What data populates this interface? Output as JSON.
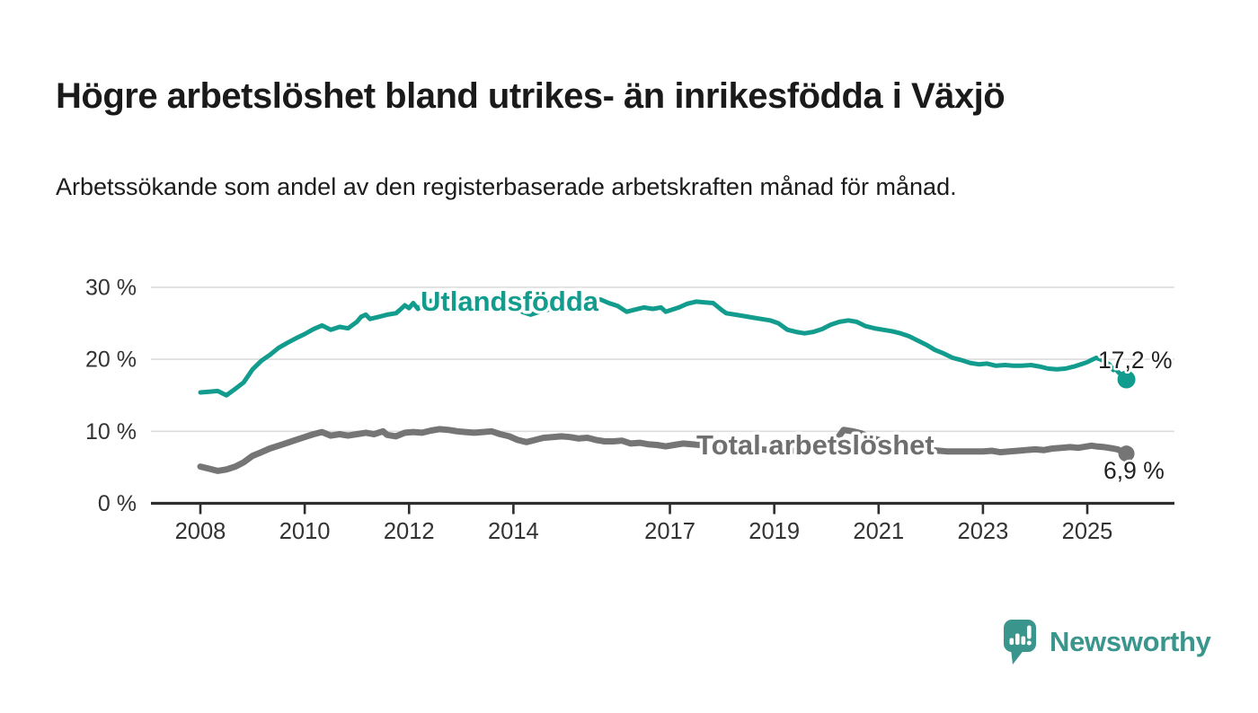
{
  "chart_data": {
    "type": "line",
    "title": "Högre arbetslöshet bland utrikes- än inrikesfödda i Växjö",
    "subtitle": "Arbetssökande som andel av den registerbaserade arbetskraften månad för månad.",
    "grid": "horizontal",
    "legend_position": "inline-labels-on-lines",
    "y_axis": {
      "unit": "%",
      "range": [
        0,
        31.5
      ],
      "tick_values": [
        30,
        20,
        10,
        0
      ],
      "tick_labels": [
        "30 %",
        "20 %",
        "10 %",
        "0 %"
      ]
    },
    "x_axis": {
      "range_years": [
        2007.9,
        2025.95
      ],
      "tick_years": [
        2008,
        2010,
        2012,
        2014,
        2017,
        2019,
        2021,
        2023,
        2025
      ],
      "tick_labels": [
        "2008",
        "2010",
        "2012",
        "2014",
        "2017",
        "2019",
        "2021",
        "2023",
        "2025"
      ]
    },
    "series": [
      {
        "name": "Utlandsfödda",
        "color": "#129c8d",
        "end_value": 17.2,
        "end_label": "17,2 %",
        "points": [
          [
            2008.0,
            15.4
          ],
          [
            2008.17,
            15.5
          ],
          [
            2008.33,
            15.6
          ],
          [
            2008.5,
            15.0
          ],
          [
            2008.67,
            15.9
          ],
          [
            2008.83,
            16.8
          ],
          [
            2009.0,
            18.6
          ],
          [
            2009.17,
            19.8
          ],
          [
            2009.33,
            20.6
          ],
          [
            2009.5,
            21.6
          ],
          [
            2009.67,
            22.3
          ],
          [
            2009.83,
            22.9
          ],
          [
            2010.0,
            23.5
          ],
          [
            2010.17,
            24.2
          ],
          [
            2010.33,
            24.7
          ],
          [
            2010.5,
            24.1
          ],
          [
            2010.67,
            24.5
          ],
          [
            2010.83,
            24.3
          ],
          [
            2011.0,
            25.2
          ],
          [
            2011.08,
            25.9
          ],
          [
            2011.17,
            26.2
          ],
          [
            2011.25,
            25.6
          ],
          [
            2011.42,
            25.9
          ],
          [
            2011.58,
            26.2
          ],
          [
            2011.75,
            26.4
          ],
          [
            2011.83,
            26.9
          ],
          [
            2011.92,
            27.5
          ],
          [
            2012.0,
            27.1
          ],
          [
            2012.08,
            27.8
          ],
          [
            2012.17,
            27.0
          ],
          [
            2012.25,
            27.6
          ],
          [
            2012.33,
            28.0
          ],
          [
            2012.5,
            28.2
          ],
          [
            2012.67,
            28.0
          ],
          [
            2012.83,
            27.9
          ],
          [
            2013.0,
            27.9
          ],
          [
            2013.17,
            28.0
          ],
          [
            2013.33,
            28.1
          ],
          [
            2013.5,
            28.2
          ],
          [
            2013.67,
            27.9
          ],
          [
            2013.83,
            27.6
          ],
          [
            2014.0,
            27.3
          ],
          [
            2014.17,
            26.6
          ],
          [
            2014.33,
            26.2
          ],
          [
            2014.5,
            26.6
          ],
          [
            2014.67,
            26.9
          ],
          [
            2014.83,
            27.1
          ],
          [
            2015.0,
            27.4
          ],
          [
            2015.17,
            27.6
          ],
          [
            2015.33,
            27.8
          ],
          [
            2015.5,
            28.0
          ],
          [
            2015.67,
            28.3
          ],
          [
            2015.83,
            27.8
          ],
          [
            2016.0,
            27.4
          ],
          [
            2016.17,
            26.6
          ],
          [
            2016.33,
            26.9
          ],
          [
            2016.5,
            27.2
          ],
          [
            2016.67,
            27.0
          ],
          [
            2016.83,
            27.2
          ],
          [
            2016.92,
            26.6
          ],
          [
            2017.0,
            26.8
          ],
          [
            2017.17,
            27.2
          ],
          [
            2017.33,
            27.7
          ],
          [
            2017.5,
            28.0
          ],
          [
            2017.67,
            27.9
          ],
          [
            2017.83,
            27.8
          ],
          [
            2018.0,
            26.8
          ],
          [
            2018.08,
            26.4
          ],
          [
            2018.25,
            26.2
          ],
          [
            2018.42,
            26.0
          ],
          [
            2018.58,
            25.8
          ],
          [
            2018.75,
            25.6
          ],
          [
            2018.92,
            25.4
          ],
          [
            2019.08,
            25.0
          ],
          [
            2019.25,
            24.1
          ],
          [
            2019.42,
            23.8
          ],
          [
            2019.58,
            23.6
          ],
          [
            2019.75,
            23.8
          ],
          [
            2019.92,
            24.2
          ],
          [
            2020.08,
            24.8
          ],
          [
            2020.25,
            25.2
          ],
          [
            2020.42,
            25.4
          ],
          [
            2020.58,
            25.2
          ],
          [
            2020.75,
            24.6
          ],
          [
            2020.92,
            24.3
          ],
          [
            2021.08,
            24.1
          ],
          [
            2021.25,
            23.9
          ],
          [
            2021.42,
            23.6
          ],
          [
            2021.58,
            23.2
          ],
          [
            2021.75,
            22.6
          ],
          [
            2021.92,
            22.0
          ],
          [
            2022.08,
            21.3
          ],
          [
            2022.25,
            20.8
          ],
          [
            2022.42,
            20.2
          ],
          [
            2022.58,
            19.9
          ],
          [
            2022.75,
            19.5
          ],
          [
            2022.92,
            19.3
          ],
          [
            2023.08,
            19.4
          ],
          [
            2023.25,
            19.1
          ],
          [
            2023.42,
            19.2
          ],
          [
            2023.58,
            19.1
          ],
          [
            2023.75,
            19.1
          ],
          [
            2023.92,
            19.2
          ],
          [
            2024.08,
            19.0
          ],
          [
            2024.25,
            18.7
          ],
          [
            2024.42,
            18.6
          ],
          [
            2024.58,
            18.7
          ],
          [
            2024.75,
            19.0
          ],
          [
            2024.92,
            19.4
          ],
          [
            2025.0,
            19.6
          ],
          [
            2025.08,
            19.9
          ],
          [
            2025.17,
            20.2
          ],
          [
            2025.25,
            20.0
          ],
          [
            2025.33,
            19.7
          ],
          [
            2025.42,
            19.3
          ],
          [
            2025.5,
            18.5
          ],
          [
            2025.54,
            18.9
          ],
          [
            2025.58,
            18.3
          ],
          [
            2025.75,
            17.2
          ]
        ]
      },
      {
        "name": "Total arbetslöshet",
        "color": "#757575",
        "end_value": 6.9,
        "end_label": "6,9 %",
        "points": [
          [
            2008.0,
            5.1
          ],
          [
            2008.17,
            4.8
          ],
          [
            2008.33,
            4.5
          ],
          [
            2008.5,
            4.7
          ],
          [
            2008.67,
            5.1
          ],
          [
            2008.83,
            5.7
          ],
          [
            2009.0,
            6.6
          ],
          [
            2009.17,
            7.1
          ],
          [
            2009.33,
            7.6
          ],
          [
            2009.5,
            8.0
          ],
          [
            2009.67,
            8.4
          ],
          [
            2009.83,
            8.8
          ],
          [
            2010.0,
            9.2
          ],
          [
            2010.17,
            9.6
          ],
          [
            2010.33,
            9.9
          ],
          [
            2010.5,
            9.4
          ],
          [
            2010.67,
            9.6
          ],
          [
            2010.83,
            9.4
          ],
          [
            2011.0,
            9.6
          ],
          [
            2011.17,
            9.8
          ],
          [
            2011.33,
            9.6
          ],
          [
            2011.5,
            10.0
          ],
          [
            2011.58,
            9.5
          ],
          [
            2011.75,
            9.3
          ],
          [
            2011.92,
            9.8
          ],
          [
            2012.08,
            9.9
          ],
          [
            2012.25,
            9.8
          ],
          [
            2012.42,
            10.1
          ],
          [
            2012.58,
            10.3
          ],
          [
            2012.75,
            10.2
          ],
          [
            2012.92,
            10.0
          ],
          [
            2013.08,
            9.9
          ],
          [
            2013.25,
            9.8
          ],
          [
            2013.42,
            9.9
          ],
          [
            2013.58,
            10.0
          ],
          [
            2013.75,
            9.6
          ],
          [
            2013.92,
            9.3
          ],
          [
            2014.08,
            8.8
          ],
          [
            2014.25,
            8.5
          ],
          [
            2014.42,
            8.8
          ],
          [
            2014.58,
            9.1
          ],
          [
            2014.75,
            9.2
          ],
          [
            2014.92,
            9.3
          ],
          [
            2015.08,
            9.2
          ],
          [
            2015.25,
            9.0
          ],
          [
            2015.42,
            9.1
          ],
          [
            2015.58,
            8.8
          ],
          [
            2015.75,
            8.6
          ],
          [
            2015.92,
            8.6
          ],
          [
            2016.08,
            8.7
          ],
          [
            2016.25,
            8.3
          ],
          [
            2016.42,
            8.4
          ],
          [
            2016.58,
            8.2
          ],
          [
            2016.75,
            8.1
          ],
          [
            2016.92,
            7.9
          ],
          [
            2017.08,
            8.1
          ],
          [
            2017.25,
            8.3
          ],
          [
            2017.42,
            8.2
          ],
          [
            2017.58,
            8.1
          ],
          [
            2017.75,
            8.0
          ],
          [
            2017.92,
            7.9
          ],
          [
            2018.08,
            7.8
          ],
          [
            2018.25,
            7.7
          ],
          [
            2018.42,
            7.6
          ],
          [
            2018.58,
            7.6
          ],
          [
            2018.75,
            7.5
          ],
          [
            2018.92,
            7.4
          ],
          [
            2019.08,
            7.4
          ],
          [
            2019.25,
            7.3
          ],
          [
            2019.42,
            7.3
          ],
          [
            2019.58,
            7.3
          ],
          [
            2019.75,
            7.4
          ],
          [
            2019.92,
            7.6
          ],
          [
            2020.08,
            8.2
          ],
          [
            2020.25,
            9.4
          ],
          [
            2020.33,
            10.2
          ],
          [
            2020.5,
            10.0
          ],
          [
            2020.67,
            9.7
          ],
          [
            2020.83,
            9.2
          ],
          [
            2021.0,
            8.8
          ],
          [
            2021.17,
            8.5
          ],
          [
            2021.33,
            8.2
          ],
          [
            2021.5,
            7.9
          ],
          [
            2021.67,
            7.7
          ],
          [
            2021.83,
            7.5
          ],
          [
            2022.0,
            7.4
          ],
          [
            2022.17,
            7.3
          ],
          [
            2022.33,
            7.2
          ],
          [
            2022.5,
            7.2
          ],
          [
            2022.67,
            7.2
          ],
          [
            2022.83,
            7.2
          ],
          [
            2023.0,
            7.2
          ],
          [
            2023.17,
            7.3
          ],
          [
            2023.33,
            7.1
          ],
          [
            2023.5,
            7.2
          ],
          [
            2023.67,
            7.3
          ],
          [
            2023.83,
            7.4
          ],
          [
            2024.0,
            7.5
          ],
          [
            2024.17,
            7.4
          ],
          [
            2024.33,
            7.6
          ],
          [
            2024.5,
            7.7
          ],
          [
            2024.67,
            7.8
          ],
          [
            2024.83,
            7.7
          ],
          [
            2025.0,
            7.9
          ],
          [
            2025.08,
            8.0
          ],
          [
            2025.17,
            7.9
          ],
          [
            2025.33,
            7.8
          ],
          [
            2025.5,
            7.6
          ],
          [
            2025.58,
            7.5
          ],
          [
            2025.75,
            6.9
          ]
        ]
      }
    ]
  },
  "branding": {
    "name": "Newsworthy",
    "icon": "bar-chart-speech-bubble-icon"
  },
  "colors": {
    "accent_teal": "#129c8d",
    "series_gray": "#757575",
    "title_text": "#1a1a1a",
    "tick_text": "#333333",
    "gridline": "#dcdcdc",
    "axis_line": "#2e2e2e",
    "logo_teal": "#3a958c",
    "background": "#ffffff"
  }
}
